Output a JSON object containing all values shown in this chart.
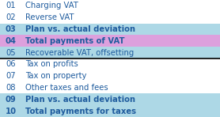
{
  "rows": [
    {
      "num": "01",
      "text": "Charging VAT",
      "bold": false,
      "bg": "#ffffff"
    },
    {
      "num": "02",
      "text": "Reverse VAT",
      "bold": false,
      "bg": "#ffffff"
    },
    {
      "num": "03",
      "text": "Plan vs. actual deviation",
      "bold": true,
      "bg": "#add8e6"
    },
    {
      "num": "04",
      "text": "Total payments of VAT",
      "bold": true,
      "bg": "#dda0dd"
    },
    {
      "num": "05",
      "text": "Recoverable VAT, offsetting",
      "bold": false,
      "bg": "#add8e6"
    },
    {
      "num": "06",
      "text": "Tax on profits",
      "bold": false,
      "bg": "#ffffff"
    },
    {
      "num": "07",
      "text": "Tax on property",
      "bold": false,
      "bg": "#ffffff"
    },
    {
      "num": "08",
      "text": "Other taxes and fees",
      "bold": false,
      "bg": "#ffffff"
    },
    {
      "num": "09",
      "text": "Plan vs. actual deviation",
      "bold": true,
      "bg": "#add8e6"
    },
    {
      "num": "10",
      "text": "Total payments for taxes",
      "bold": true,
      "bg": "#add8e6"
    }
  ],
  "divider_after_row": 5,
  "num_color": "#1f5c9e",
  "font_size": 7.2,
  "bg_white": "#ffffff",
  "bg_light_blue": "#add8e6",
  "bg_pink": "#dda0dd",
  "divider_color": "#000000"
}
